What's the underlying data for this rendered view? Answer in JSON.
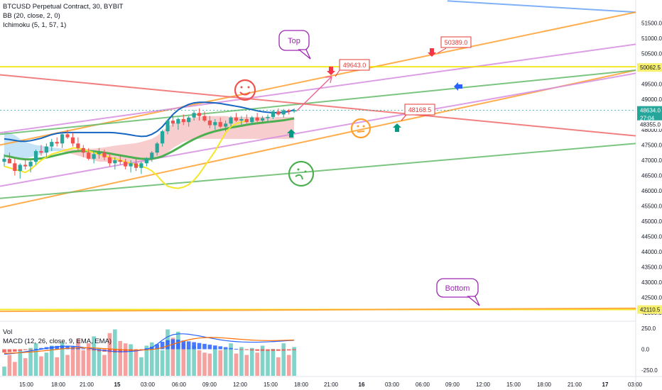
{
  "header": {
    "symbol": "BTCUSD Perpetual Contract, 30, BYBIT",
    "bb": "BB (20, close, 2, 0)",
    "ichimoku": "Ichimoku (5, 1, 57, 1)"
  },
  "sub": {
    "vol": "Vol",
    "macd": "MACD (12, 26, close, 9, EMA, EMA)"
  },
  "colors": {
    "candle_up": "#26a69a",
    "candle_down": "#ef5350",
    "bb_basis": "#4caf50",
    "bb_band": "#1565c0",
    "ichimoku_cloud": "#f7c4c4",
    "ichimoku_line": "#f5e62a",
    "orange": "#ff9f2e",
    "pink": "#d68ee0",
    "green": "#66bb6a",
    "red": "#ef6b6b",
    "yellow": "#f2e400",
    "blue": "#6aa3f5",
    "annot": "#9c27b0",
    "label_red": "#e53935"
  },
  "chart_data": [
    {
      "type": "candlestick",
      "title": "BTCUSD Perpetual Contract, 30, BYBIT",
      "y_axis_ticks": [
        "51500.0",
        "51000.0",
        "50500.0",
        "50000.0",
        "49500.0",
        "49000.0",
        "48500.0",
        "48000.0",
        "47500.0",
        "47000.0",
        "46500.0",
        "46000.0",
        "45500.0",
        "45000.0",
        "44500.0",
        "44000.0",
        "43500.0",
        "43000.0",
        "42500.0",
        "42000.0"
      ],
      "x_axis_ticks": [
        "15:00",
        "18:00",
        "21:00",
        "15",
        "03:00",
        "06:00",
        "09:00",
        "12:00",
        "15:00",
        "18:00",
        "21:00",
        "16",
        "03:00",
        "06:00",
        "09:00",
        "12:00",
        "15:00",
        "18:00",
        "21:00",
        "17",
        "03:00"
      ],
      "ylim": [
        41750,
        52250
      ],
      "price_labels": [
        {
          "text": "51500.0",
          "kind": "plain"
        },
        {
          "text": "50062.5",
          "kind": "yellow"
        },
        {
          "text": "48634.0",
          "kind": "teal"
        },
        {
          "text": "27:04",
          "kind": "teal"
        },
        {
          "text": "48355.0",
          "kind": "plain"
        },
        {
          "text": "42110.5",
          "kind": "yellow"
        }
      ],
      "annotations": [
        {
          "text": "Top",
          "kind": "callout"
        },
        {
          "text": "Bottom",
          "kind": "callout"
        },
        {
          "text": "50389.0",
          "kind": "price-tag",
          "value": 50389.0
        },
        {
          "text": "49643.0",
          "kind": "price-tag",
          "value": 49643.0
        },
        {
          "text": "48168.5",
          "kind": "price-tag",
          "value": 48168.5
        }
      ],
      "candles_x": [
        "14:00",
        "14:30",
        "15:00",
        "15:30",
        "16:00",
        "16:30",
        "17:00",
        "17:30",
        "18:00",
        "18:30",
        "19:00",
        "19:30",
        "20:00",
        "20:30",
        "21:00",
        "21:30",
        "22:00",
        "22:30",
        "23:00",
        "23:30",
        "00:00",
        "00:30",
        "01:00",
        "01:30",
        "02:00",
        "02:30",
        "03:00",
        "03:30",
        "04:00",
        "04:30",
        "05:00",
        "05:30",
        "06:00",
        "06:30",
        "07:00",
        "07:30",
        "08:00",
        "08:30",
        "09:00",
        "09:30",
        "10:00",
        "10:30",
        "11:00",
        "11:30",
        "12:00",
        "12:30",
        "13:00",
        "13:30",
        "14:00",
        "14:30",
        "15:00",
        "15:30",
        "16:00",
        "16:30",
        "17:00",
        "17:30"
      ],
      "ohlc": [
        [
          46950,
          47200,
          46800,
          47050
        ],
        [
          47050,
          47250,
          46900,
          46900
        ],
        [
          46900,
          47050,
          46500,
          46650
        ],
        [
          46650,
          46900,
          46400,
          46850
        ],
        [
          46850,
          47050,
          46700,
          46800
        ],
        [
          46800,
          47000,
          46600,
          46950
        ],
        [
          46950,
          47350,
          46850,
          47300
        ],
        [
          47300,
          47500,
          47150,
          47250
        ],
        [
          47250,
          47550,
          47100,
          47450
        ],
        [
          47450,
          47700,
          47300,
          47600
        ],
        [
          47600,
          47750,
          47450,
          47550
        ],
        [
          47550,
          47900,
          47400,
          47850
        ],
        [
          47850,
          48000,
          47700,
          47750
        ],
        [
          47750,
          47900,
          47450,
          47550
        ],
        [
          47550,
          47750,
          47300,
          47400
        ],
        [
          47400,
          47500,
          47100,
          47250
        ],
        [
          47250,
          47400,
          47000,
          47050
        ],
        [
          47050,
          47300,
          46900,
          47200
        ],
        [
          47200,
          47400,
          47050,
          47250
        ],
        [
          47250,
          47350,
          47000,
          47100
        ],
        [
          47100,
          47200,
          46800,
          46900
        ],
        [
          46900,
          47100,
          46700,
          47000
        ],
        [
          47000,
          47150,
          46850,
          46950
        ],
        [
          46950,
          47050,
          46700,
          46800
        ],
        [
          46800,
          47000,
          46600,
          46900
        ],
        [
          46900,
          47050,
          46650,
          46750
        ],
        [
          46750,
          46950,
          46550,
          46900
        ],
        [
          46900,
          47100,
          46800,
          47050
        ],
        [
          47050,
          47300,
          46950,
          47250
        ],
        [
          47250,
          47600,
          47150,
          47550
        ],
        [
          47550,
          48000,
          47450,
          47950
        ],
        [
          47950,
          48350,
          47850,
          48300
        ],
        [
          48300,
          48500,
          48100,
          48200
        ],
        [
          48200,
          48400,
          48000,
          48350
        ],
        [
          48350,
          48500,
          48150,
          48250
        ],
        [
          48250,
          48450,
          48100,
          48400
        ],
        [
          48400,
          48650,
          48300,
          48550
        ],
        [
          48550,
          48700,
          48300,
          48450
        ],
        [
          48450,
          48600,
          48250,
          48300
        ],
        [
          48300,
          48450,
          48050,
          48150
        ],
        [
          48150,
          48350,
          48000,
          48250
        ],
        [
          48250,
          48400,
          48050,
          48100
        ],
        [
          48100,
          48300,
          47950,
          48200
        ],
        [
          48200,
          48450,
          48100,
          48400
        ],
        [
          48400,
          48550,
          48250,
          48300
        ],
        [
          48300,
          48450,
          48150,
          48350
        ],
        [
          48350,
          48500,
          48200,
          48250
        ],
        [
          48250,
          48450,
          48150,
          48400
        ],
        [
          48400,
          48550,
          48250,
          48300
        ],
        [
          48300,
          48450,
          48200,
          48380
        ],
        [
          48380,
          48500,
          48250,
          48420
        ],
        [
          48420,
          48650,
          48350,
          48600
        ],
        [
          48600,
          48700,
          48450,
          48500
        ],
        [
          48500,
          48680,
          48400,
          48634
        ],
        [
          48634,
          48680,
          48500,
          48600
        ],
        [
          48600,
          48700,
          48550,
          48634
        ]
      ],
      "bb_upper": [
        47700,
        47680,
        47650,
        47620,
        47620,
        47640,
        47680,
        47720,
        47780,
        47840,
        47880,
        47900,
        47910,
        47910,
        47910,
        47910,
        47910,
        47910,
        47910,
        47910,
        47910,
        47900,
        47880,
        47860,
        47830,
        47800,
        47780,
        47790,
        47850,
        47950,
        48100,
        48300,
        48500,
        48650,
        48750,
        48830,
        48880,
        48900,
        48900,
        48890,
        48880,
        48860,
        48830,
        48800,
        48770,
        48740,
        48700,
        48660,
        48620,
        48590,
        48570,
        48560,
        48560,
        48570,
        48600,
        48650
      ],
      "bb_basis": [
        47150,
        47120,
        47080,
        47050,
        47030,
        47030,
        47040,
        47060,
        47090,
        47130,
        47170,
        47210,
        47250,
        47280,
        47300,
        47310,
        47300,
        47290,
        47270,
        47250,
        47220,
        47190,
        47160,
        47130,
        47100,
        47070,
        47050,
        47040,
        47050,
        47080,
        47130,
        47210,
        47300,
        47400,
        47500,
        47600,
        47690,
        47770,
        47840,
        47900,
        47950,
        47990,
        48030,
        48070,
        48100,
        48130,
        48160,
        48190,
        48210,
        48230,
        48250,
        48270,
        48290,
        48310,
        48340,
        48370
      ],
      "ichimoku_lagging": [
        46800,
        46750,
        46700,
        46650,
        46600,
        46700,
        46850,
        47000,
        47100,
        47200,
        47250,
        47300,
        47350,
        47400,
        47400,
        47350,
        47300,
        47250,
        47200,
        47150,
        47100,
        47050,
        47000,
        46950,
        46900,
        46850,
        46800,
        46750,
        46650,
        46500,
        46300,
        46150,
        46100,
        46080,
        46120,
        46200,
        46350,
        46550,
        46800,
        47050,
        47300,
        47600,
        47900,
        48100,
        48200,
        48250,
        48300
      ],
      "lines": [
        {
          "name": "blue",
          "color": "#6aa3f5",
          "pts": [
            [
              "10:00",
              52220
            ],
            [
              "04:00",
              51850
            ]
          ]
        },
        {
          "name": "orange-upper",
          "color": "#ff9f2e",
          "pts": [
            [
              "14:00",
              47500
            ],
            [
              "04:00",
              51850
            ]
          ]
        },
        {
          "name": "orange-lower",
          "color": "#ff9f2e",
          "pts": [
            [
              "14:00",
              45450
            ],
            [
              "04:00",
              49950
            ]
          ]
        },
        {
          "name": "pink-upper",
          "color": "#d68ee0",
          "pts": [
            [
              "15:00",
              47900
            ],
            [
              "04:00",
              50800
            ]
          ]
        },
        {
          "name": "pink-lower",
          "color": "#d68ee0",
          "pts": [
            [
              "14:00",
              46150
            ],
            [
              "04:00",
              49850
            ]
          ]
        },
        {
          "name": "green-upper",
          "color": "#66bb6a",
          "pts": [
            [
              "14:00",
              47850
            ],
            [
              "04:00",
              49950
            ]
          ]
        },
        {
          "name": "green-lower",
          "color": "#66bb6a",
          "pts": [
            [
              "14:00",
              45750
            ],
            [
              "04:00",
              47550
            ]
          ]
        },
        {
          "name": "red",
          "color": "#ef6b6b",
          "pts": [
            [
              "14:00",
              49800
            ],
            [
              "04:00",
              47800
            ]
          ]
        },
        {
          "name": "yellow-top",
          "color": "#f2e400",
          "pts": [
            [
              "14:00",
              50062.5
            ],
            [
              "04:00",
              50062.5
            ]
          ]
        },
        {
          "name": "yellow-bottom",
          "color": "#f2e400",
          "pts": [
            [
              "14:00",
              42110.5
            ],
            [
              "04:00",
              42110.5
            ]
          ]
        },
        {
          "name": "orange-bottom",
          "color": "#ff9f2e",
          "pts": [
            [
              "14:00",
              42050
            ],
            [
              "04:00",
              42150
            ]
          ]
        }
      ]
    },
    {
      "type": "bar",
      "title": "Vol / MACD (12, 26, close, 9, EMA, EMA)",
      "y_axis_ticks": [
        "250.0",
        "0.0",
        "-250.0"
      ],
      "ylim": [
        -320,
        320
      ],
      "volume_up": [
        true,
        false,
        false,
        true,
        false,
        true,
        true,
        false,
        true,
        true,
        false,
        true,
        false,
        false,
        false,
        false,
        false,
        true,
        true,
        false,
        false,
        true,
        false,
        false,
        true,
        false,
        true,
        true,
        true,
        true,
        true,
        true,
        false,
        true,
        false,
        true,
        true,
        false,
        false,
        false,
        true,
        false,
        true,
        true,
        false,
        true,
        false,
        true,
        false,
        true,
        true,
        true,
        false,
        true,
        false,
        true
      ],
      "volume": [
        20,
        45,
        30,
        55,
        38,
        60,
        70,
        42,
        50,
        65,
        40,
        72,
        45,
        60,
        80,
        55,
        70,
        85,
        60,
        45,
        92,
        100,
        75,
        70,
        68,
        55,
        40,
        65,
        72,
        60,
        55,
        100,
        82,
        95,
        70,
        60,
        65,
        55,
        50,
        48,
        60,
        55,
        58,
        70,
        48,
        62,
        45,
        60,
        50,
        65,
        55,
        58,
        40,
        70,
        45,
        62
      ],
      "macd_hist": [
        -40,
        -35,
        -30,
        -20,
        -10,
        -5,
        5,
        15,
        25,
        35,
        40,
        45,
        40,
        30,
        20,
        10,
        -5,
        -15,
        -25,
        -30,
        -35,
        -40,
        -40,
        -35,
        -25,
        -15,
        -5,
        10,
        30,
        60,
        90,
        110,
        120,
        115,
        105,
        95,
        85,
        75,
        65,
        55,
        45,
        35,
        25,
        15,
        5,
        -5,
        -10,
        -15,
        -20,
        -20,
        -20,
        -20,
        -20,
        -18,
        -15,
        -12
      ],
      "macd": [
        -60,
        -55,
        -48,
        -40,
        -30,
        -20,
        -10,
        0,
        10,
        20,
        30,
        35,
        38,
        36,
        30,
        22,
        12,
        2,
        -8,
        -16,
        -22,
        -27,
        -30,
        -30,
        -26,
        -20,
        -12,
        0,
        20,
        60,
        110,
        150,
        175,
        185,
        185,
        180,
        170,
        160,
        148,
        136,
        124,
        113,
        104,
        97,
        92,
        88,
        86,
        85,
        85,
        87,
        89,
        92,
        96,
        100,
        104,
        108
      ],
      "signal": [
        -50,
        -48,
        -45,
        -42,
        -38,
        -33,
        -28,
        -22,
        -16,
        -9,
        -2,
        4,
        10,
        14,
        17,
        18,
        17,
        15,
        12,
        8,
        4,
        0,
        -4,
        -8,
        -10,
        -11,
        -10,
        -8,
        -3,
        5,
        20,
        40,
        60,
        80,
        98,
        114,
        126,
        135,
        140,
        142,
        141,
        138,
        134,
        129,
        124,
        119,
        114,
        110,
        107,
        105,
        104,
        104,
        105,
        107,
        109,
        111
      ]
    }
  ]
}
